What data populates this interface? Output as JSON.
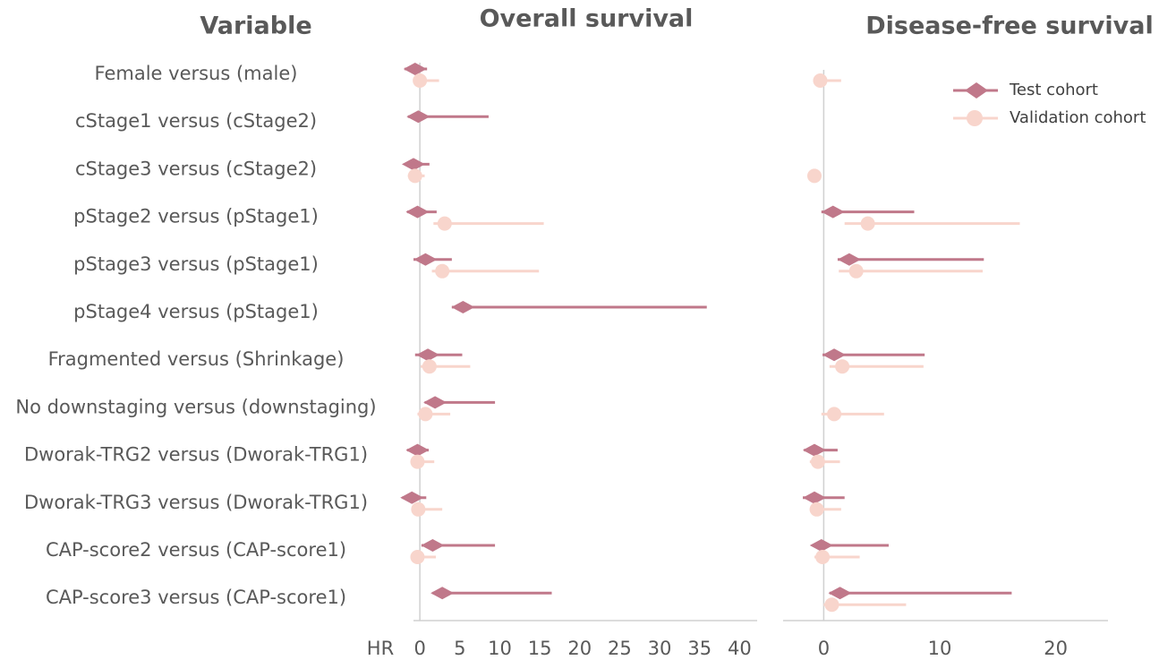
{
  "chart_data": [
    {
      "type": "forest",
      "title": "Overall survival",
      "category_title": "Variable",
      "xlabel": "HR",
      "categories": [
        "Female versus (male)",
        "cStage1 versus (cStage2)",
        "cStage3 versus (cStage2)",
        "pStage2 versus (pStage1)",
        "pStage3 versus (pStage1)",
        "pStage4 versus (pStage1)",
        "Fragmented versus (Shrinkage)",
        "No downstaging versus (downstaging)",
        "Dworak-TRG2 versus (Dworak-TRG1)",
        "Dworak-TRG3 versus (Dworak-TRG1)",
        "CAP-score2 versus (CAP-score1)",
        "CAP-score3 versus (CAP-score1)"
      ],
      "xlim": [
        -0.8,
        42.2
      ],
      "xticks": [
        0,
        5,
        10,
        15,
        20,
        25,
        30,
        35,
        40
      ],
      "series": [
        {
          "color": "#c0788a",
          "marker": "diamond",
          "values": [
            -0.6,
            -0.2,
            -0.8,
            -0.3,
            0.7,
            5.4,
            1.0,
            1.9,
            -0.3,
            -1.0,
            1.6,
            2.8
          ],
          "lower": [
            -1.9,
            -1.5,
            -1.9,
            -1.6,
            -0.8,
            4.0,
            -0.6,
            0.6,
            -1.6,
            -2.2,
            0.2,
            1.6
          ],
          "upper": [
            0.9,
            8.6,
            1.2,
            2.1,
            4.0,
            35.9,
            5.3,
            9.4,
            1.1,
            0.8,
            9.4,
            16.5
          ]
        },
        {
          "color": "#f8d5cc",
          "marker": "circle",
          "values": [
            0,
            null,
            -0.6,
            3.1,
            2.8,
            null,
            1.2,
            0.7,
            -0.3,
            -0.2,
            -0.3,
            null
          ],
          "lower": [
            -0.8,
            null,
            -1.5,
            1.7,
            1.5,
            null,
            0.1,
            -0.3,
            -1.1,
            -1.0,
            -1.1,
            null
          ],
          "upper": [
            2.4,
            null,
            0.6,
            15.5,
            14.9,
            null,
            6.3,
            3.8,
            1.8,
            2.8,
            2.0,
            null
          ]
        }
      ]
    },
    {
      "type": "forest",
      "title": "Disease-free survival",
      "xlim": [
        -3.5,
        24.5
      ],
      "xticks": [
        0,
        10,
        20
      ],
      "legend": "upper right",
      "series": [
        {
          "name": "Test cohort",
          "color": "#c0788a",
          "marker": "diamond",
          "values": [
            null,
            null,
            null,
            0.8,
            2.2,
            null,
            0.9,
            null,
            -0.8,
            -0.8,
            -0.2,
            1.4
          ],
          "lower": [
            null,
            null,
            null,
            -0.2,
            1.2,
            null,
            -0.1,
            null,
            -1.7,
            -1.8,
            -1.0,
            0.5
          ],
          "upper": [
            null,
            null,
            null,
            7.8,
            13.8,
            null,
            8.7,
            null,
            1.2,
            1.8,
            5.6,
            16.2
          ]
        },
        {
          "name": "Validation cohort",
          "color": "#f8d5cc",
          "marker": "circle",
          "values": [
            -0.3,
            null,
            -0.8,
            3.8,
            2.8,
            null,
            1.6,
            0.9,
            -0.5,
            -0.6,
            -0.1,
            0.7
          ],
          "lower": [
            -0.9,
            null,
            -1.0,
            1.8,
            1.3,
            null,
            0.5,
            -0.2,
            -1.2,
            -1.2,
            -0.8,
            0
          ],
          "upper": [
            1.5,
            null,
            -0.6,
            16.9,
            13.7,
            null,
            8.6,
            5.2,
            1.4,
            1.5,
            3.1,
            7.1
          ]
        }
      ]
    }
  ]
}
